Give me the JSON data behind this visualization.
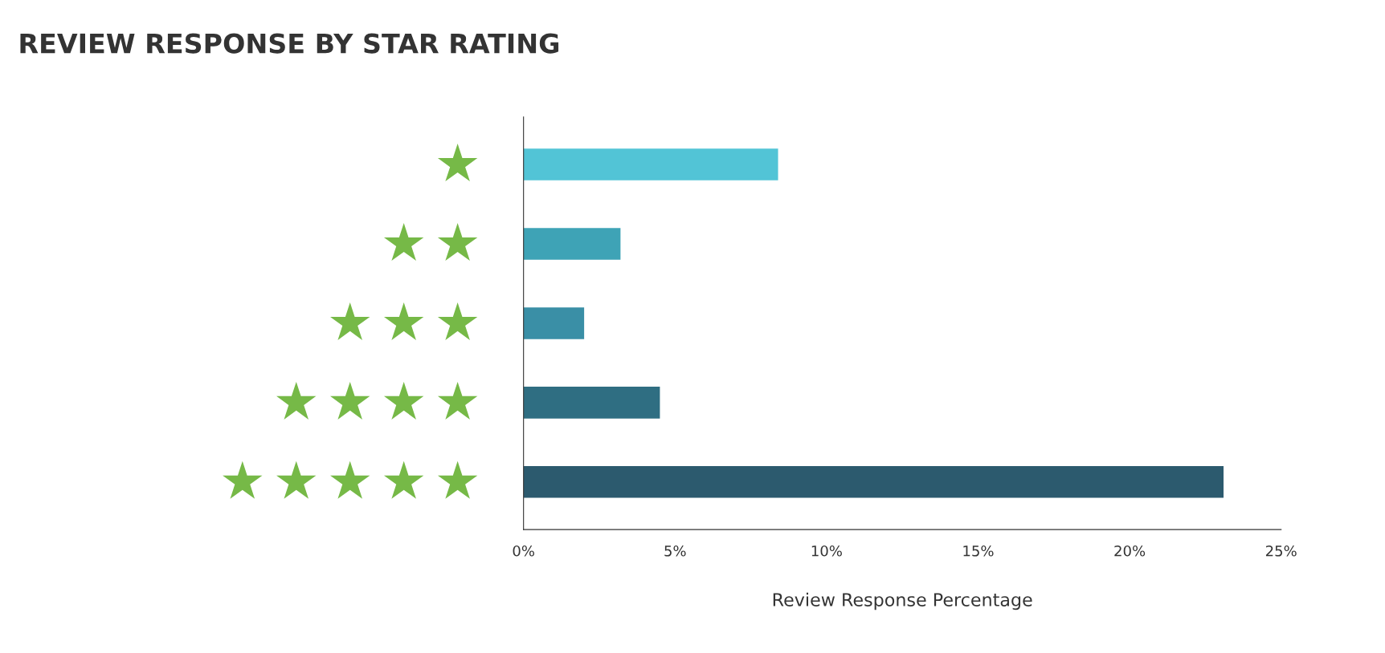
{
  "chart_data": {
    "type": "bar",
    "orientation": "horizontal",
    "title": "REVIEW RESPONSE BY STAR RATING",
    "xlabel": "Review Response Percentage",
    "categories": [
      null,
      null,
      null,
      null,
      null
    ],
    "values": [
      8.4,
      3.2,
      2.0,
      4.5,
      23.1
    ],
    "colors": [
      "#52c4d6",
      "#3ea3b6",
      "#3a8fa6",
      "#2f6e82",
      "#2c5a6e"
    ],
    "xlim": [
      0,
      25
    ],
    "xticks": [
      {
        "value": 0,
        "label": "0%"
      },
      {
        "value": 5,
        "label": "5%"
      },
      {
        "value": 10,
        "label": "10%"
      },
      {
        "value": 15,
        "label": "15%"
      },
      {
        "value": 20,
        "label": "20%"
      },
      {
        "value": 25,
        "label": "25%"
      }
    ],
    "grid": false
  }
}
